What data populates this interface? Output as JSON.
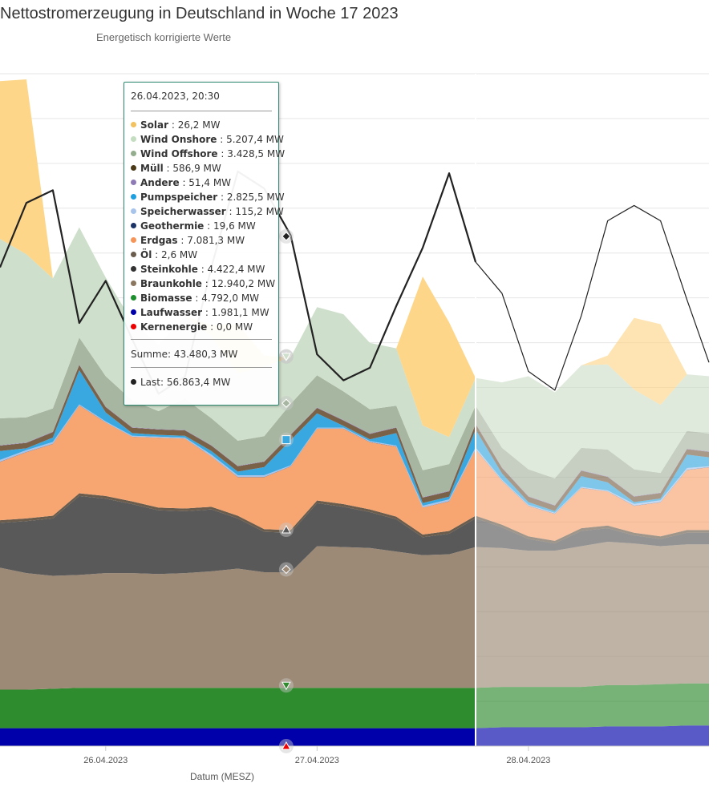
{
  "header": {
    "title": "Nettostromerzeugung in Deutschland in Woche 17 2023",
    "subtitle": "Energetisch korrigierte Werte"
  },
  "chart_data": {
    "type": "area",
    "title": "Nettostromerzeugung in Deutschland in Woche 17 2023",
    "subtitle": "Energetisch korrigierte Werte",
    "xlabel": "Datum (MESZ)",
    "x_ticks": [
      "26.04.2023",
      "27.04.2023",
      "28.04.2023"
    ],
    "x_start": "25.04.2023 12:00",
    "x_end": "28.04.2023 20:30",
    "ylim": [
      0,
      75000
    ],
    "grid": true,
    "forecast_from": "27.04.2023 18:00",
    "x": [
      "25.04.2023 12:00",
      "25.04.2023 15:00",
      "25.04.2023 18:00",
      "25.04.2023 21:00",
      "26.04.2023 00:00",
      "26.04.2023 03:00",
      "26.04.2023 06:00",
      "26.04.2023 09:00",
      "26.04.2023 12:00",
      "26.04.2023 15:00",
      "26.04.2023 18:00",
      "26.04.2023 21:00",
      "27.04.2023 00:00",
      "27.04.2023 03:00",
      "27.04.2023 06:00",
      "27.04.2023 09:00",
      "27.04.2023 12:00",
      "27.04.2023 15:00",
      "27.04.2023 18:00",
      "27.04.2023 21:00",
      "28.04.2023 00:00",
      "28.04.2023 03:00",
      "28.04.2023 06:00",
      "28.04.2023 09:00",
      "28.04.2023 12:00",
      "28.04.2023 15:00",
      "28.04.2023 18:00",
      "28.04.2023 20:30"
    ],
    "series": [
      {
        "name": "Kernenergie",
        "color": "#ee0000",
        "values": [
          0,
          0,
          0,
          0,
          0,
          0,
          0,
          0,
          0,
          0,
          0,
          0,
          0,
          0,
          0,
          0,
          0,
          0,
          0,
          0,
          0,
          0,
          0,
          0,
          0,
          0,
          0,
          0
        ]
      },
      {
        "name": "Laufwasser",
        "color": "#0000aa",
        "values": [
          2000,
          2000,
          2000,
          2000,
          2000,
          2000,
          2000,
          2000,
          2000,
          2000,
          2000,
          2000,
          2000,
          2000,
          2000,
          2000,
          2000,
          2000,
          2000,
          2100,
          2100,
          2100,
          2100,
          2200,
          2200,
          2200,
          2300,
          2300
        ]
      },
      {
        "name": "Biomasse",
        "color": "#2e8b2e",
        "values": [
          4300,
          4300,
          4400,
          4500,
          4500,
          4500,
          4500,
          4500,
          4500,
          4500,
          4500,
          4500,
          4500,
          4500,
          4500,
          4500,
          4500,
          4500,
          4500,
          4500,
          4500,
          4500,
          4500,
          4600,
          4600,
          4700,
          4700,
          4700
        ]
      },
      {
        "name": "Braunkohle",
        "color": "#9d8a76",
        "values": [
          13600,
          13000,
          12600,
          12600,
          12800,
          12800,
          12700,
          12800,
          13000,
          13300,
          12900,
          12900,
          15800,
          15700,
          15600,
          15200,
          14800,
          14900,
          15700,
          15500,
          15200,
          15200,
          15700,
          16000,
          15800,
          15400,
          15500,
          15500
        ]
      },
      {
        "name": "Steinkohle",
        "color": "#595959",
        "values": [
          5000,
          5800,
          6400,
          8800,
          8300,
          7700,
          7100,
          6900,
          6900,
          5600,
          4500,
          4400,
          4800,
          4500,
          4000,
          3600,
          2000,
          2300,
          3200,
          2300,
          1300,
          800,
          1700,
          1500,
          900,
          800,
          1300,
          1300
        ]
      },
      {
        "name": "Öl",
        "color": "#6b5d4d",
        "values": [
          300,
          300,
          300,
          300,
          300,
          300,
          300,
          300,
          300,
          300,
          300,
          300,
          300,
          300,
          300,
          300,
          300,
          300,
          300,
          300,
          300,
          300,
          300,
          300,
          300,
          300,
          300,
          300
        ]
      },
      {
        "name": "Erdgas",
        "color": "#f7a571",
        "values": [
          6500,
          7400,
          8000,
          9800,
          8200,
          7200,
          7800,
          7800,
          5600,
          4300,
          5800,
          7100,
          8000,
          8400,
          7500,
          7800,
          3000,
          3300,
          7400,
          4900,
          3400,
          3000,
          4500,
          3800,
          3000,
          3800,
          6700,
          7000
        ]
      },
      {
        "name": "Geothermie",
        "color": "#002266",
        "values": [
          20,
          20,
          20,
          20,
          20,
          20,
          20,
          20,
          20,
          20,
          20,
          20,
          20,
          20,
          20,
          20,
          20,
          20,
          20,
          20,
          20,
          20,
          20,
          20,
          20,
          20,
          20,
          20
        ]
      },
      {
        "name": "Speicherwasser",
        "color": "#a9c4eb",
        "values": [
          200,
          200,
          200,
          100,
          100,
          100,
          100,
          100,
          200,
          200,
          200,
          100,
          100,
          100,
          100,
          100,
          200,
          200,
          200,
          100,
          100,
          100,
          100,
          100,
          200,
          200,
          200,
          100
        ]
      },
      {
        "name": "Pumpspeicher",
        "color": "#3aa8e0",
        "values": [
          1000,
          200,
          500,
          3800,
          1000,
          300,
          200,
          200,
          400,
          400,
          900,
          2800,
          1600,
          200,
          200,
          1400,
          300,
          300,
          2000,
          700,
          300,
          200,
          1200,
          900,
          200,
          200,
          1500,
          1000
        ]
      },
      {
        "name": "Müll",
        "color": "#7a6248",
        "values": [
          600,
          600,
          600,
          600,
          600,
          600,
          600,
          600,
          600,
          600,
          600,
          600,
          600,
          600,
          600,
          600,
          600,
          600,
          600,
          600,
          600,
          600,
          600,
          600,
          600,
          600,
          600,
          600
        ]
      },
      {
        "name": "Andere",
        "color": "#8e7bb5",
        "values": [
          50,
          50,
          50,
          50,
          50,
          50,
          50,
          50,
          50,
          50,
          50,
          50,
          50,
          50,
          50,
          50,
          50,
          50,
          50,
          50,
          50,
          50,
          50,
          50,
          50,
          50,
          50,
          50
        ]
      },
      {
        "name": "Wind Offshore",
        "color": "#a7b6a0",
        "values": [
          3000,
          2800,
          2600,
          3000,
          3400,
          3000,
          2000,
          3500,
          3000,
          2800,
          2800,
          3400,
          3600,
          3200,
          2700,
          2400,
          3000,
          3000,
          2000,
          2200,
          3000,
          3000,
          2500,
          3000,
          3000,
          2200,
          2000,
          2000
        ]
      },
      {
        "name": "Wind Onshore",
        "color": "#cedfcb",
        "values": [
          20000,
          18200,
          14500,
          12300,
          11000,
          8800,
          7400,
          9200,
          9200,
          7500,
          7800,
          5200,
          7600,
          8600,
          7400,
          6400,
          5000,
          3000,
          3100,
          7300,
          10400,
          9600,
          9200,
          9500,
          8900,
          7600,
          6300,
          6400
        ]
      },
      {
        "name": "Solar",
        "color": "#fdd68a",
        "values": [
          17600,
          19500,
          0,
          0,
          0,
          0,
          0,
          0,
          1200,
          5500,
          1200,
          0,
          0,
          0,
          0,
          0,
          16600,
          12800,
          0,
          0,
          0,
          0,
          0,
          1000,
          8000,
          9000,
          0,
          0
        ]
      }
    ],
    "load": {
      "name": "Last",
      "color": "#222222",
      "values": [
        53400,
        60600,
        62000,
        47200,
        51900,
        45400,
        39300,
        41200,
        53400,
        64100,
        62200,
        57000,
        43700,
        40800,
        42200,
        49100,
        55600,
        63900,
        54000,
        50500,
        41800,
        39700,
        48000,
        58600,
        60300,
        58600,
        49800,
        42800
      ]
    },
    "tooltip": {
      "time": "26.04.2023, 20:30",
      "items": [
        {
          "name": "Solar",
          "value": "26,2 MW",
          "color": "#f2c160"
        },
        {
          "name": "Wind Onshore",
          "value": "5.207,4 MW",
          "color": "#c4dcc0"
        },
        {
          "name": "Wind Offshore",
          "value": "3.428,5 MW",
          "color": "#94ad8e"
        },
        {
          "name": "Müll",
          "value": "586,9 MW",
          "color": "#4a3a18"
        },
        {
          "name": "Andere",
          "value": "51,4 MW",
          "color": "#8e7bb5"
        },
        {
          "name": "Pumpspeicher",
          "value": "2.825,5 MW",
          "color": "#1e9fe0"
        },
        {
          "name": "Speicherwasser",
          "value": "115,2 MW",
          "color": "#a9c4eb"
        },
        {
          "name": "Geothermie",
          "value": "19,6 MW",
          "color": "#1c3366"
        },
        {
          "name": "Erdgas",
          "value": "7.081,3 MW",
          "color": "#f5955a"
        },
        {
          "name": "Öl",
          "value": "2,6 MW",
          "color": "#6b5d4d"
        },
        {
          "name": "Steinkohle",
          "value": "4.422,4 MW",
          "color": "#333333"
        },
        {
          "name": "Braunkohle",
          "value": "12.940,2 MW",
          "color": "#8b7760"
        },
        {
          "name": "Biomasse",
          "value": "4.792,0 MW",
          "color": "#1e8f2e"
        },
        {
          "name": "Laufwasser",
          "value": "1.981,1 MW",
          "color": "#0000aa"
        },
        {
          "name": "Kernenergie",
          "value": "0,0 MW",
          "color": "#ee0000"
        }
      ],
      "sum_label": "Summe",
      "sum_value": "43.480,3 MW",
      "load_label": "Last",
      "load_value": "56.863,4 MW",
      "load_color": "#222222"
    }
  }
}
